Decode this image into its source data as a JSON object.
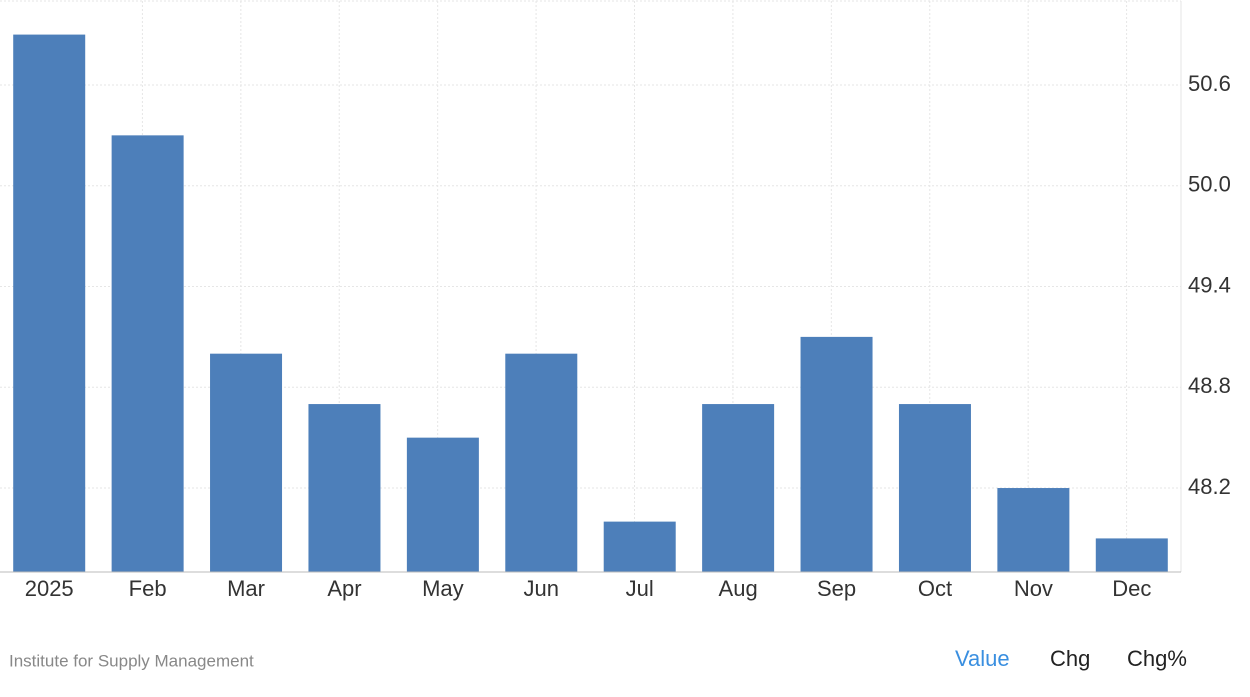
{
  "chart_data": {
    "type": "bar",
    "categories": [
      "2025",
      "Feb",
      "Mar",
      "Apr",
      "May",
      "Jun",
      "Jul",
      "Aug",
      "Sep",
      "Oct",
      "Nov",
      "Dec"
    ],
    "values": [
      50.9,
      50.3,
      49.0,
      48.7,
      48.5,
      49.0,
      48.0,
      48.7,
      49.1,
      48.7,
      48.2,
      47.9
    ],
    "color": "#4d7fba",
    "ylim": [
      47.7,
      51.1
    ],
    "yticks": [
      48.2,
      48.8,
      49.4,
      {
        "value": 50,
        "label": "50.0"
      },
      50.6
    ],
    "grid": true
  },
  "footer": {
    "source": "Institute for Supply Management",
    "tabs": [
      "Value",
      "Chg",
      "Chg%"
    ]
  }
}
